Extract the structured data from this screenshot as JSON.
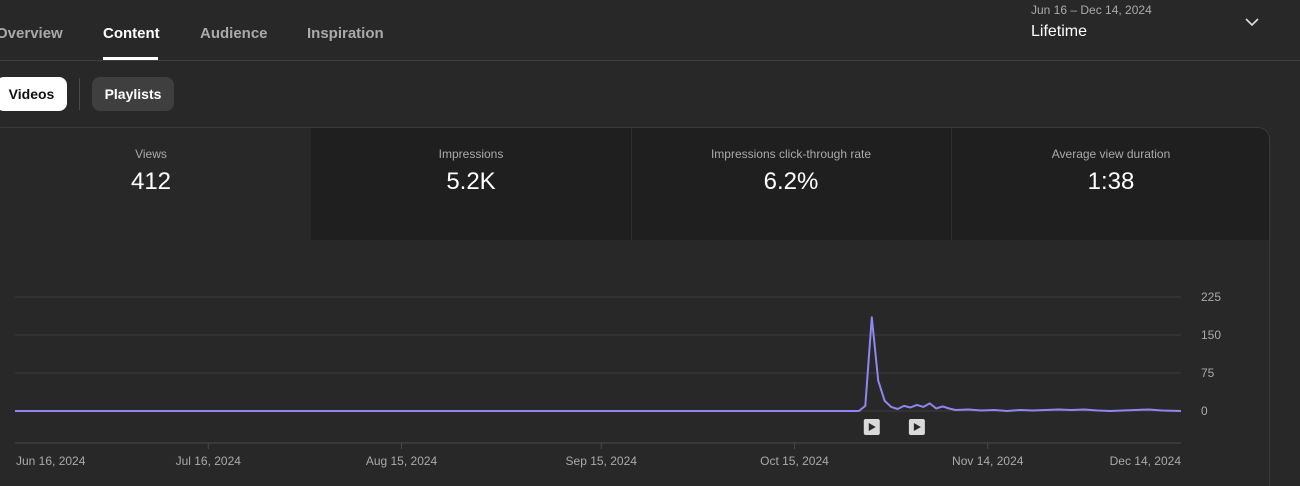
{
  "tabs": [
    {
      "label": "Overview",
      "active": false
    },
    {
      "label": "Content",
      "active": true
    },
    {
      "label": "Audience",
      "active": false
    },
    {
      "label": "Inspiration",
      "active": false
    }
  ],
  "date_range": {
    "dates": "Jun 16 – Dec 14, 2024",
    "label": "Lifetime",
    "dropdown_icon": "chevron-down-icon"
  },
  "chips": [
    {
      "label": "Videos",
      "selected": true
    },
    {
      "label": "Playlists",
      "selected": false
    }
  ],
  "metrics": [
    {
      "label": "Views",
      "value": "412",
      "selected": true
    },
    {
      "label": "Impressions",
      "value": "5.2K",
      "selected": false
    },
    {
      "label": "Impressions click-through rate",
      "value": "6.2%",
      "selected": false
    },
    {
      "label": "Average view duration",
      "value": "1:38",
      "selected": false
    }
  ],
  "colors": {
    "accent_line": "#8e87f0",
    "background": "#282828",
    "text_muted": "#aaaaaa"
  },
  "chart_data": {
    "type": "line",
    "title": "",
    "xlabel": "",
    "ylabel": "",
    "ylim": [
      0,
      225
    ],
    "y_ticks": [
      0,
      75,
      150,
      225
    ],
    "x_tick_labels": [
      "Jun 16, 2024",
      "Jul 16, 2024",
      "Aug 15, 2024",
      "Sep 15, 2024",
      "Oct 15, 2024",
      "Nov 14, 2024",
      "Dec 14, 2024"
    ],
    "x_tick_dates": [
      "2024-06-16",
      "2024-07-16",
      "2024-08-15",
      "2024-09-15",
      "2024-10-15",
      "2024-11-14",
      "2024-12-14"
    ],
    "grid": true,
    "series": [
      {
        "values": [
          {
            "x": "2024-06-16",
            "y": 0
          },
          {
            "x": "2024-10-25",
            "y": 0
          },
          {
            "x": "2024-10-26",
            "y": 10
          },
          {
            "x": "2024-10-27",
            "y": 185
          },
          {
            "x": "2024-10-28",
            "y": 60
          },
          {
            "x": "2024-10-29",
            "y": 20
          },
          {
            "x": "2024-10-30",
            "y": 8
          },
          {
            "x": "2024-10-31",
            "y": 4
          },
          {
            "x": "2024-11-01",
            "y": 10
          },
          {
            "x": "2024-11-02",
            "y": 7
          },
          {
            "x": "2024-11-03",
            "y": 12
          },
          {
            "x": "2024-11-04",
            "y": 8
          },
          {
            "x": "2024-11-05",
            "y": 15
          },
          {
            "x": "2024-11-06",
            "y": 5
          },
          {
            "x": "2024-11-07",
            "y": 9
          },
          {
            "x": "2024-11-08",
            "y": 5
          },
          {
            "x": "2024-11-09",
            "y": 2
          },
          {
            "x": "2024-11-11",
            "y": 3
          },
          {
            "x": "2024-11-13",
            "y": 1
          },
          {
            "x": "2024-11-15",
            "y": 2
          },
          {
            "x": "2024-11-17",
            "y": 0
          },
          {
            "x": "2024-11-19",
            "y": 2
          },
          {
            "x": "2024-11-21",
            "y": 1
          },
          {
            "x": "2024-11-23",
            "y": 2
          },
          {
            "x": "2024-11-25",
            "y": 3
          },
          {
            "x": "2024-11-27",
            "y": 2
          },
          {
            "x": "2024-11-29",
            "y": 3
          },
          {
            "x": "2024-12-01",
            "y": 1
          },
          {
            "x": "2024-12-03",
            "y": 0
          },
          {
            "x": "2024-12-07",
            "y": 2
          },
          {
            "x": "2024-12-09",
            "y": 3
          },
          {
            "x": "2024-12-11",
            "y": 1
          },
          {
            "x": "2024-12-14",
            "y": 0
          }
        ]
      }
    ],
    "publish_markers": [
      {
        "x": "2024-10-27",
        "icon": "play-icon"
      },
      {
        "x": "2024-11-03",
        "icon": "play-icon"
      }
    ]
  }
}
